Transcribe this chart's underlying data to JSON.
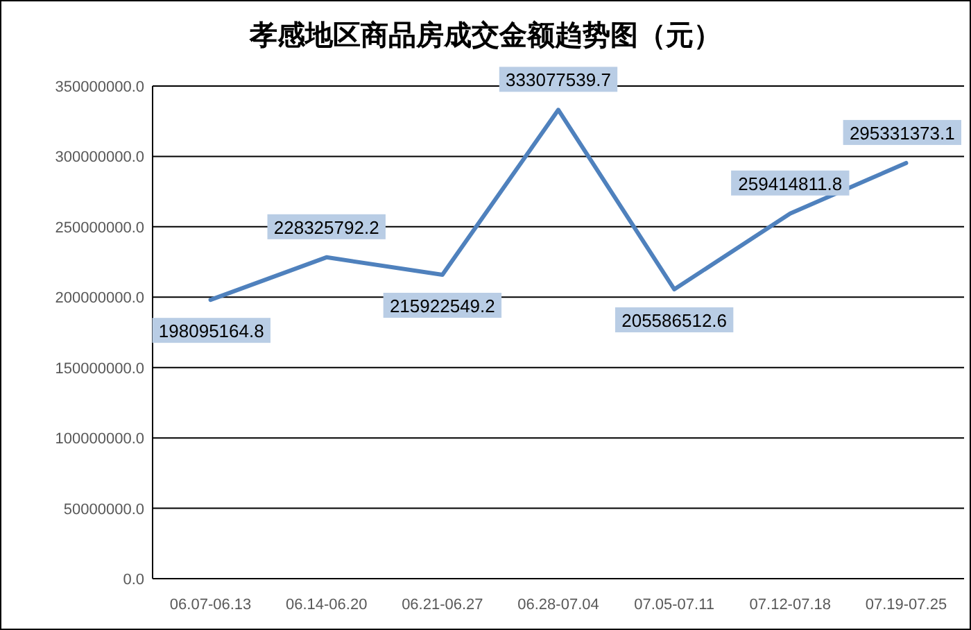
{
  "chart_data": {
    "type": "line",
    "title": "孝感地区商品房成交金额趋势图（元）",
    "categories": [
      "06.07-06.13",
      "06.14-06.20",
      "06.21-06.27",
      "06.28-07.04",
      "07.05-07.11",
      "07.12-07.18",
      "07.19-07.25"
    ],
    "series": [
      {
        "color": "#4f81bd",
        "values": [
          198095164.8,
          228325792.2,
          215922549.2,
          333077539.7,
          205586512.6,
          259414811.8,
          295331373.1
        ]
      }
    ],
    "ylim": [
      0,
      350000000
    ],
    "yticks": [
      {
        "value": 0,
        "label": "0.0"
      },
      {
        "value": 50000000,
        "label": "50000000.0"
      },
      {
        "value": 100000000,
        "label": "100000000.0"
      },
      {
        "value": 150000000,
        "label": "150000000.0"
      },
      {
        "value": 200000000,
        "label": "200000000.0"
      },
      {
        "value": 250000000,
        "label": "250000000.0"
      },
      {
        "value": 300000000,
        "label": "300000000.0"
      },
      {
        "value": 350000000,
        "label": "350000000.0"
      }
    ],
    "grid": "y",
    "marker": "none",
    "line_style": "solid",
    "data_labels": true
  }
}
